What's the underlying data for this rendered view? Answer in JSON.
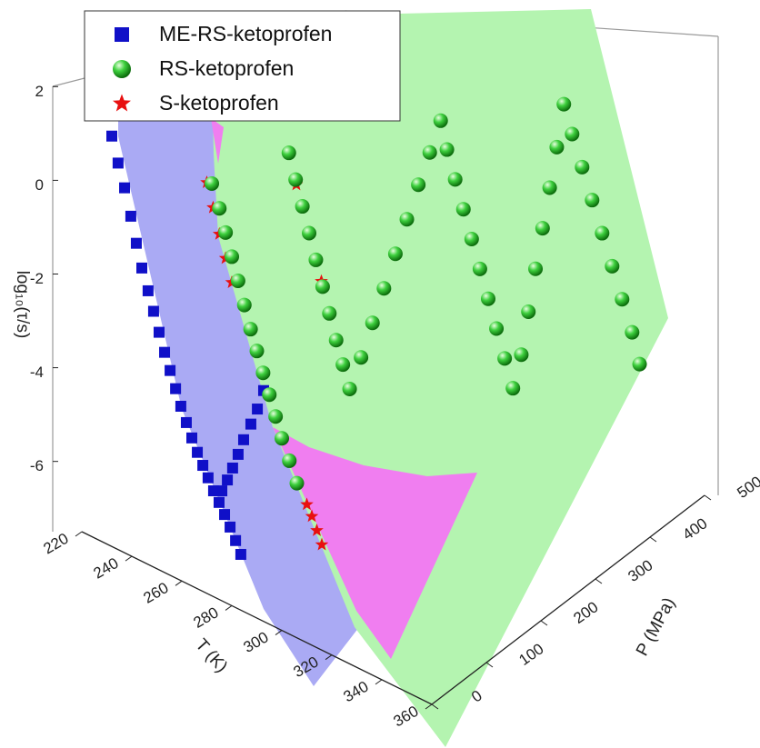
{
  "chart_data": {
    "type": "scatter3d",
    "xlabel": "T (K)",
    "ylabel": "P (MPa)",
    "zlabel": "log₁₀(τ/s)",
    "xlim": [
      220,
      360
    ],
    "ylim": [
      0,
      500
    ],
    "zlim": [
      -7.5,
      2.2
    ],
    "xticks": [
      220,
      240,
      260,
      280,
      300,
      320,
      340,
      360
    ],
    "yticks": [
      0,
      100,
      200,
      300,
      400,
      500
    ],
    "zticks": [
      2,
      0,
      -2,
      -4,
      -6
    ],
    "legend": "upper left",
    "series": [
      {
        "name": "ME-RS-ketoprofen",
        "color": "#1010c8",
        "marker": "square",
        "T": [
          232.0,
          234.5,
          237.1,
          239.6,
          241.8,
          244.0,
          246.5,
          248.7,
          250.9,
          253.1,
          255.3,
          257.5,
          259.6,
          261.8,
          264.0,
          266.2,
          268.4,
          270.5,
          272.7,
          274.9,
          277.1,
          279.3,
          281.5,
          283.6,
          270.9,
          268.4,
          265.8,
          262.9,
          260.7,
          258.5,
          256.4,
          254.2
        ],
        "P": [
          0,
          0,
          0,
          0,
          0,
          0,
          0,
          0,
          0,
          0,
          0,
          0,
          0,
          0,
          0,
          0,
          0,
          0,
          0,
          0,
          0,
          0,
          0,
          0,
          100,
          100,
          100,
          100,
          100,
          100,
          100,
          100
        ],
        "values": [
          1.26,
          0.75,
          0.29,
          -0.25,
          -0.77,
          -1.24,
          -1.66,
          -2.04,
          -2.43,
          -2.8,
          -3.13,
          -3.46,
          -3.78,
          -4.07,
          -4.34,
          -4.59,
          -4.81,
          -5.02,
          -5.24,
          -5.43,
          -5.63,
          -5.84,
          -6.07,
          -6.31,
          -4.04,
          -4.5,
          -4.89,
          -5.3,
          -5.67,
          -6.02,
          -6.33,
          -6.62
        ]
      },
      {
        "name": "S-ketoprofen",
        "color": "#e81010",
        "marker": "star",
        "T": [
          270,
          272.5,
          275,
          277.5,
          280,
          310,
          312,
          314,
          316,
          284,
          289,
          294
        ],
        "P": [
          0,
          0,
          0,
          0,
          0,
          0,
          0,
          0,
          0,
          100,
          100,
          100
        ],
        "values": [
          1.27,
          0.8,
          0.3,
          -0.15,
          -0.6,
          -4.55,
          -4.75,
          -5.0,
          -5.25,
          0.7,
          -0.2,
          -1.1
        ]
      },
      {
        "name": "RS-ketoprofen",
        "color": "#22c022",
        "marker": "sphere",
        "T": [
          272,
          275,
          277.5,
          280,
          282.5,
          285,
          287.5,
          290,
          292.5,
          295,
          297.5,
          300,
          303,
          306,
          281,
          283.7,
          286.4,
          289.1,
          291.8,
          294.5,
          297.2,
          299.9,
          302.6,
          305.3,
          305.5,
          305.5,
          305.5,
          305.5,
          305.5,
          305.5,
          305.5,
          305.5,
          308,
          311.3,
          314.6,
          317.9,
          321.2,
          324.5,
          327.8,
          331.1,
          334.4,
          334.7,
          334.7,
          334.7,
          334.7,
          334.7,
          334.7,
          334.7,
          338,
          342,
          346,
          350,
          354,
          358,
          362,
          365
        ],
        "P": [
          0,
          0,
          0,
          0,
          0,
          0,
          0,
          0,
          0,
          0,
          0,
          0,
          0,
          0,
          100,
          100,
          100,
          100,
          100,
          100,
          100,
          100,
          100,
          100,
          120,
          141,
          162,
          183,
          204,
          225,
          246,
          266,
          266,
          266,
          266,
          266,
          266,
          266,
          266,
          266,
          266,
          280,
          293,
          306,
          319,
          332,
          345,
          358,
          358,
          358,
          358,
          358,
          358,
          358,
          358,
          358
        ],
        "values": [
          1.3,
          0.85,
          0.4,
          -0.05,
          -0.5,
          -0.95,
          -1.4,
          -1.8,
          -2.2,
          -2.6,
          -3.0,
          -3.4,
          -3.8,
          -4.2,
          1.3,
          0.8,
          0.3,
          -0.2,
          -0.7,
          -1.2,
          -1.7,
          -2.2,
          -2.65,
          -3.1,
          -2.6,
          -2.05,
          -1.5,
          -0.95,
          -0.4,
          0.15,
          0.65,
          1.15,
          0.6,
          0.05,
          -0.5,
          -1.05,
          -1.6,
          -2.15,
          -2.7,
          -3.25,
          -3.8,
          -3.2,
          -2.4,
          -1.6,
          -0.85,
          -0.1,
          0.65,
          1.45,
          0.9,
          0.3,
          -0.3,
          -0.9,
          -1.5,
          -2.1,
          -2.7,
          -3.3
        ]
      }
    ]
  }
}
